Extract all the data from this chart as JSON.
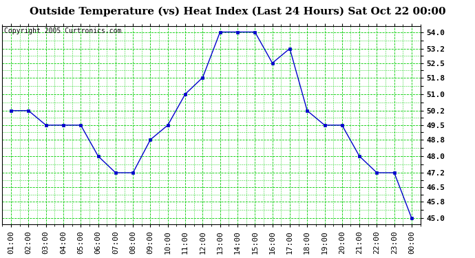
{
  "title": "Outside Temperature (vs) Heat Index (Last 24 Hours) Sat Oct 22 00:00",
  "copyright": "Copyright 2005 Curtronics.com",
  "x_labels": [
    "01:00",
    "02:00",
    "03:00",
    "04:00",
    "05:00",
    "06:00",
    "07:00",
    "08:00",
    "09:00",
    "10:00",
    "11:00",
    "12:00",
    "13:00",
    "14:00",
    "15:00",
    "16:00",
    "17:00",
    "18:00",
    "19:00",
    "20:00",
    "21:00",
    "22:00",
    "23:00",
    "00:00"
  ],
  "y_values": [
    50.2,
    50.2,
    49.5,
    49.5,
    49.5,
    48.0,
    47.2,
    47.2,
    48.8,
    49.5,
    51.0,
    51.8,
    54.0,
    54.0,
    54.0,
    52.5,
    53.2,
    50.2,
    49.5,
    49.5,
    48.0,
    47.2,
    47.2,
    45.0
  ],
  "yticks": [
    45.0,
    45.8,
    46.5,
    47.2,
    48.0,
    48.8,
    49.5,
    50.2,
    51.0,
    51.8,
    52.5,
    53.2,
    54.0
  ],
  "ylim": [
    44.7,
    54.3
  ],
  "line_color": "#0000cc",
  "marker_color": "#0000cc",
  "bg_color": "#ffffff",
  "plot_bg_color": "#ffffff",
  "grid_color": "#00cc00",
  "title_fontsize": 11,
  "copyright_fontsize": 7,
  "tick_fontsize": 8,
  "tick_label_color": "#000000"
}
